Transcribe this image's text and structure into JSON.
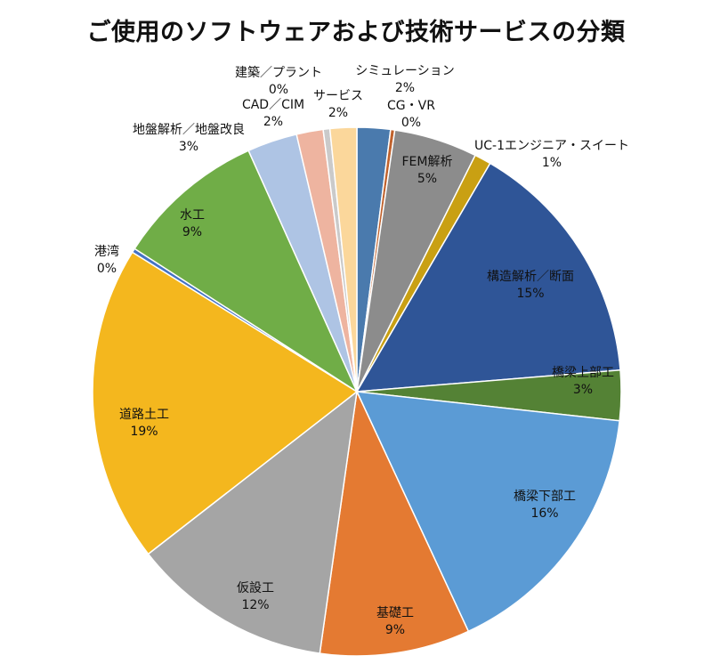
{
  "chart_data": {
    "type": "pie",
    "title": "ご使用のソフトウェアおよび技術サービスの分類",
    "slices": [
      {
        "label": "シミュレーション",
        "value": 2,
        "display": "2%",
        "color": "#4a7aad"
      },
      {
        "label": "CG・VR",
        "value": 0.25,
        "display": "0%",
        "color": "#c0622d"
      },
      {
        "label": "FEM解析",
        "value": 5,
        "display": "5%",
        "color": "#8c8c8c"
      },
      {
        "label": "UC-1エンジニア・スイート",
        "value": 1,
        "display": "1%",
        "color": "#c9a013"
      },
      {
        "label": "構造解析／断面",
        "value": 15,
        "display": "15%",
        "color": "#2f5597"
      },
      {
        "label": "橋梁上部工",
        "value": 3,
        "display": "3%",
        "color": "#548235"
      },
      {
        "label": "橋梁下部工",
        "value": 16,
        "display": "16%",
        "color": "#5b9bd5"
      },
      {
        "label": "基礎工",
        "value": 9,
        "display": "9%",
        "color": "#e47a32"
      },
      {
        "label": "仮設工",
        "value": 12,
        "display": "12%",
        "color": "#a5a5a5"
      },
      {
        "label": "道路土工",
        "value": 19,
        "display": "19%",
        "color": "#f4b71e"
      },
      {
        "label": "港湾",
        "value": 0.25,
        "display": "0%",
        "color": "#4472c4"
      },
      {
        "label": "水工",
        "value": 9,
        "display": "9%",
        "color": "#70ad47"
      },
      {
        "label": "地盤解析／地盤改良",
        "value": 3,
        "display": "3%",
        "color": "#aec4e4"
      },
      {
        "label": "CAD／CIM",
        "value": 1.6,
        "display": "2%",
        "color": "#eeb4a0"
      },
      {
        "label": "建築／プラント",
        "value": 0.4,
        "display": "0%",
        "color": "#cacaca"
      },
      {
        "label": "サービス",
        "value": 1.6,
        "display": "2%",
        "color": "#fbd79b"
      }
    ]
  }
}
